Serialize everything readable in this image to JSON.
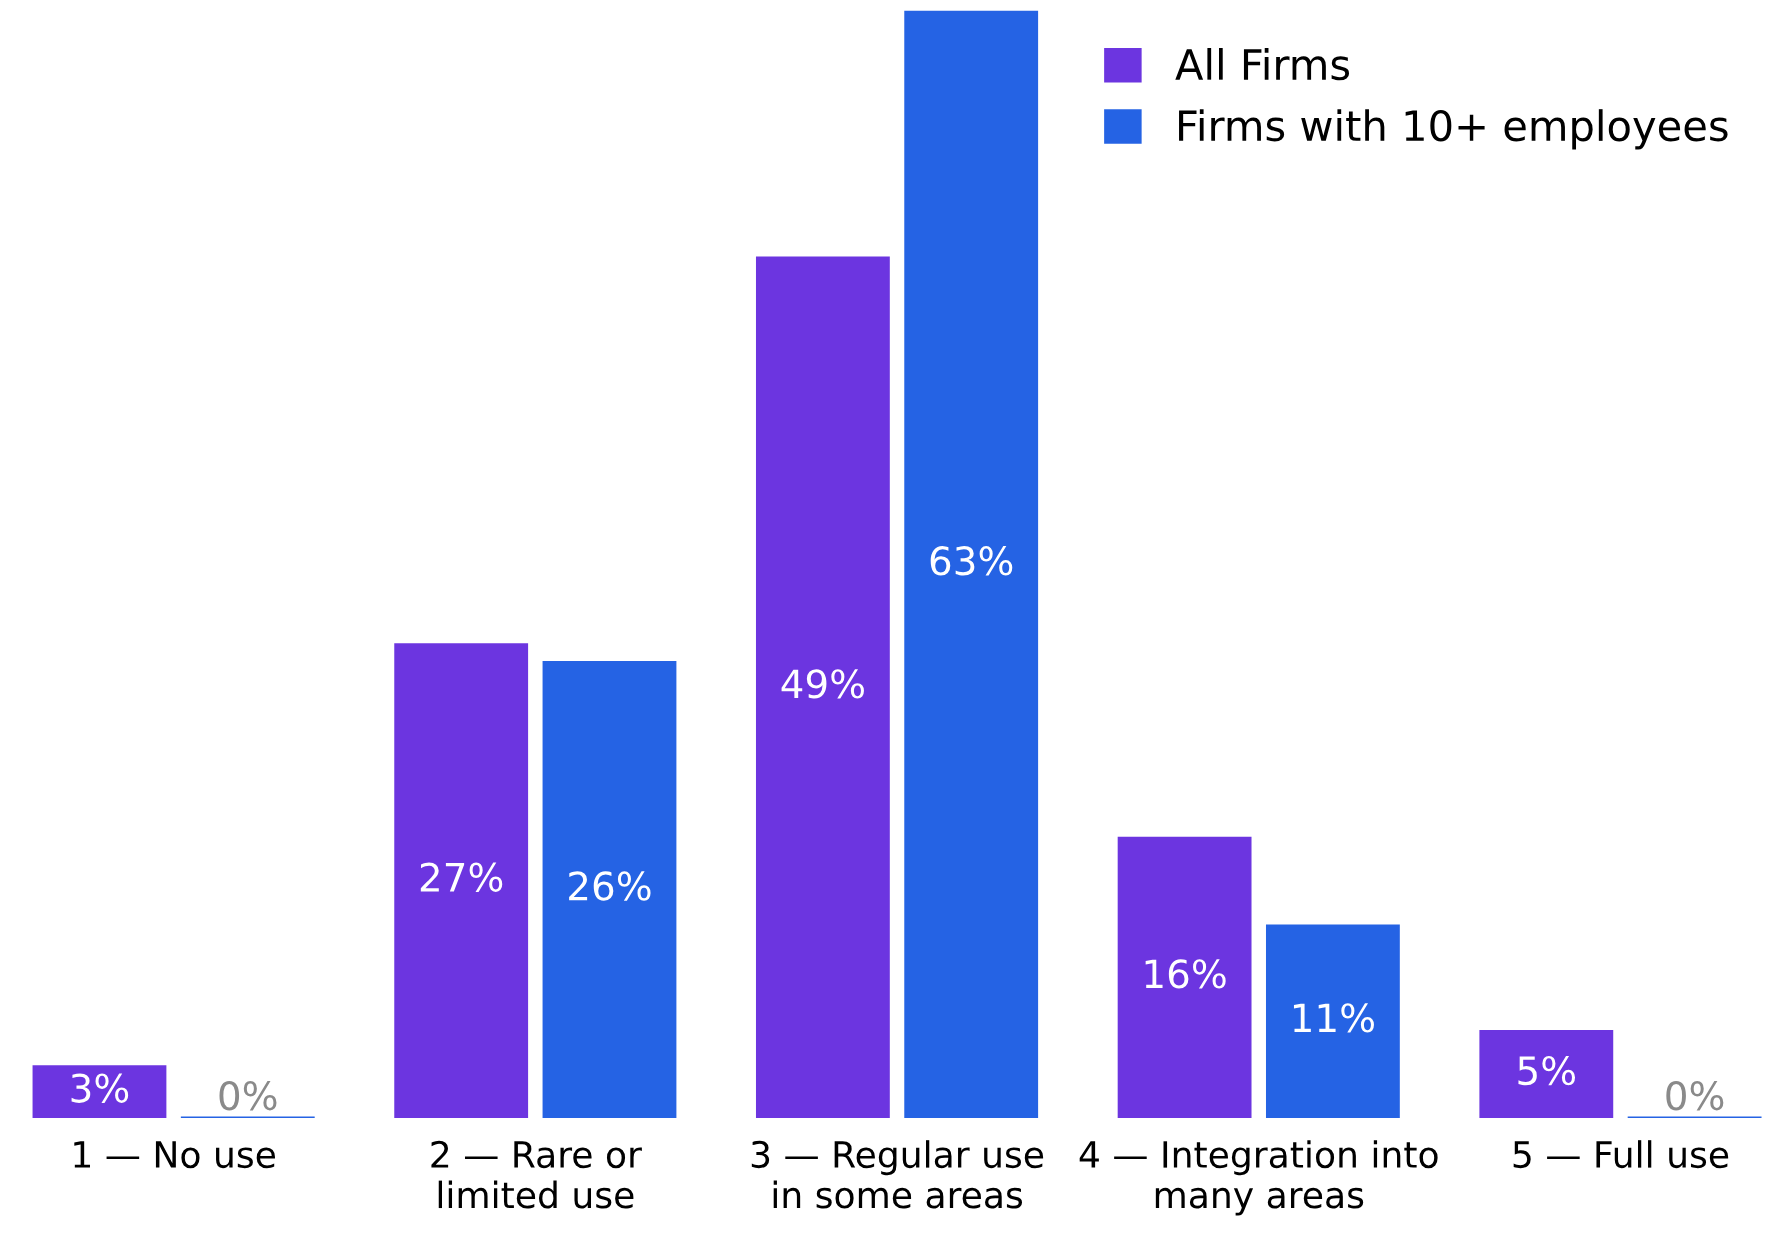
{
  "chart_data": {
    "type": "bar",
    "categories": [
      "1 — No use",
      "2 — Rare or\nlimited use",
      "3 — Regular use\nin some areas",
      "4 — Integration into\nmany areas",
      "5 — Full use"
    ],
    "series": [
      {
        "name": "All Firms",
        "color": "#6c35e0",
        "values": [
          3,
          27,
          49,
          16,
          5
        ],
        "value_labels": [
          "3%",
          "27%",
          "49%",
          "16%",
          "5%"
        ]
      },
      {
        "name": "Firms with 10+ employees",
        "color": "#2563e4",
        "values": [
          0,
          26,
          63,
          11,
          0
        ],
        "value_labels": [
          "0%",
          "26%",
          "63%",
          "11%",
          "0%"
        ]
      }
    ],
    "legend": "top right",
    "grid": false
  }
}
